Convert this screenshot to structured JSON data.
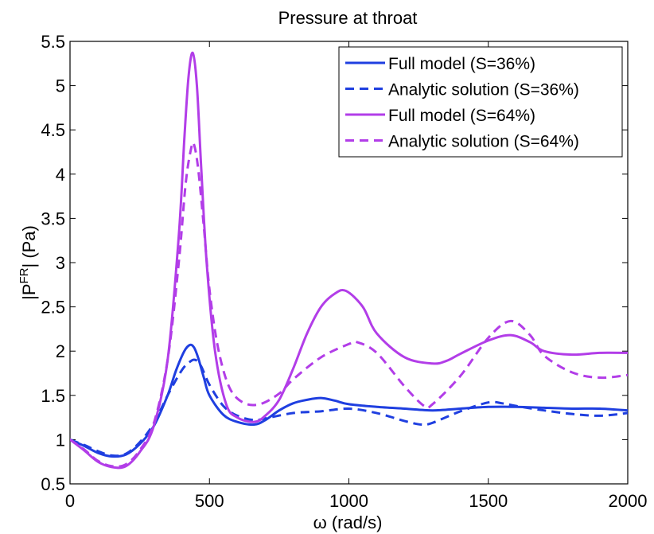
{
  "chart_data": {
    "type": "line",
    "title": "Pressure at throat",
    "xlabel": "ω (rad/s)",
    "ylabel_main": "|P",
    "ylabel_sup": "FR",
    "ylabel_tail": "| (Pa)",
    "xlim": [
      0,
      2000
    ],
    "ylim": [
      0.5,
      5.5
    ],
    "xticks": [
      0,
      500,
      1000,
      1500,
      2000
    ],
    "xtick_labels": [
      "0",
      "500",
      "1000",
      "1500",
      "2000"
    ],
    "yticks": [
      0.5,
      1,
      1.5,
      2,
      2.5,
      3,
      3.5,
      4,
      4.5,
      5,
      5.5
    ],
    "ytick_labels": [
      "0.5",
      "1",
      "1.5",
      "2",
      "2.5",
      "3",
      "3.5",
      "4",
      "4.5",
      "5",
      "5.5"
    ],
    "grid": false,
    "legend_position": "top-right",
    "series": [
      {
        "name": "Full model (S=36%)",
        "color": "#1f3fe0",
        "dash": "solid",
        "x": [
          0,
          50,
          100,
          150,
          200,
          250,
          300,
          350,
          380,
          410,
          430,
          445,
          460,
          480,
          500,
          550,
          600,
          660,
          700,
          750,
          800,
          850,
          900,
          950,
          1000,
          1100,
          1200,
          1300,
          1400,
          1500,
          1600,
          1700,
          1800,
          1900,
          2000
        ],
        "y": [
          1.0,
          0.93,
          0.85,
          0.81,
          0.83,
          0.95,
          1.15,
          1.5,
          1.78,
          2.0,
          2.07,
          2.04,
          1.92,
          1.7,
          1.5,
          1.28,
          1.2,
          1.17,
          1.22,
          1.33,
          1.41,
          1.45,
          1.47,
          1.44,
          1.4,
          1.37,
          1.35,
          1.33,
          1.35,
          1.37,
          1.37,
          1.36,
          1.35,
          1.35,
          1.33
        ]
      },
      {
        "name": "Analytic solution (S=36%)",
        "color": "#1f3fe0",
        "dash": "dashed",
        "x": [
          0,
          50,
          100,
          150,
          200,
          250,
          300,
          350,
          400,
          430,
          450,
          470,
          500,
          550,
          600,
          660,
          700,
          800,
          900,
          1000,
          1100,
          1200,
          1260,
          1300,
          1400,
          1500,
          1550,
          1600,
          1700,
          1800,
          1900,
          2000
        ],
        "y": [
          1.0,
          0.94,
          0.87,
          0.82,
          0.84,
          0.97,
          1.18,
          1.5,
          1.78,
          1.88,
          1.9,
          1.83,
          1.62,
          1.38,
          1.27,
          1.22,
          1.24,
          1.3,
          1.32,
          1.35,
          1.3,
          1.21,
          1.17,
          1.19,
          1.32,
          1.42,
          1.41,
          1.38,
          1.33,
          1.29,
          1.27,
          1.3
        ]
      },
      {
        "name": "Full model (S=64%)",
        "color": "#b23de8",
        "dash": "solid",
        "x": [
          0,
          50,
          100,
          150,
          200,
          250,
          300,
          350,
          390,
          410,
          425,
          440,
          455,
          470,
          490,
          520,
          560,
          600,
          660,
          700,
          750,
          800,
          850,
          900,
          950,
          990,
          1050,
          1100,
          1200,
          1300,
          1350,
          1400,
          1500,
          1580,
          1650,
          1700,
          1800,
          1900,
          2000
        ],
        "y": [
          1.0,
          0.88,
          0.75,
          0.69,
          0.7,
          0.86,
          1.15,
          1.9,
          3.3,
          4.4,
          5.1,
          5.37,
          5.0,
          4.1,
          3.0,
          2.0,
          1.4,
          1.25,
          1.2,
          1.27,
          1.45,
          1.8,
          2.2,
          2.5,
          2.65,
          2.68,
          2.5,
          2.2,
          1.93,
          1.86,
          1.89,
          1.97,
          2.12,
          2.18,
          2.1,
          2.0,
          1.96,
          1.98,
          1.98
        ]
      },
      {
        "name": "Analytic solution (S=64%)",
        "color": "#b23de8",
        "dash": "dashed",
        "x": [
          0,
          50,
          100,
          150,
          200,
          250,
          300,
          350,
          390,
          415,
          435,
          445,
          460,
          480,
          500,
          530,
          570,
          620,
          680,
          750,
          800,
          900,
          1000,
          1030,
          1100,
          1200,
          1270,
          1300,
          1400,
          1500,
          1580,
          1650,
          1700,
          1800,
          1900,
          2000
        ],
        "y": [
          1.0,
          0.89,
          0.76,
          0.7,
          0.72,
          0.88,
          1.18,
          1.9,
          3.0,
          3.9,
          4.3,
          4.33,
          4.05,
          3.4,
          2.7,
          2.05,
          1.6,
          1.42,
          1.4,
          1.52,
          1.68,
          1.93,
          2.08,
          2.1,
          1.98,
          1.6,
          1.38,
          1.4,
          1.72,
          2.15,
          2.34,
          2.18,
          1.95,
          1.76,
          1.7,
          1.73
        ]
      }
    ]
  }
}
